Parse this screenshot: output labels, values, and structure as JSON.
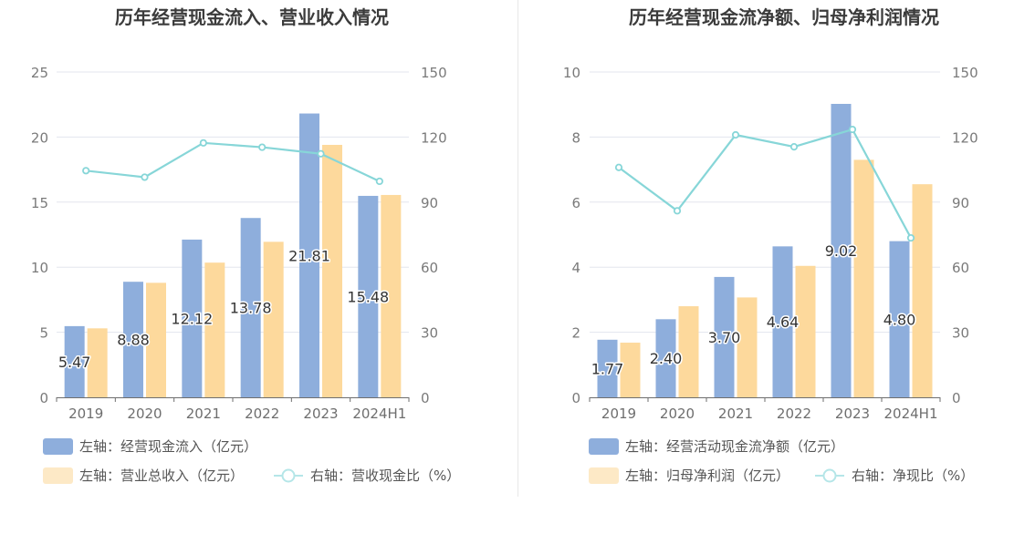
{
  "chart_data": [
    {
      "type": "bar",
      "title": "历年经营现金流入、营业收入情况",
      "categories": [
        "2019",
        "2020",
        "2021",
        "2022",
        "2023",
        "2024H1"
      ],
      "left_axis": {
        "ylim": [
          0,
          25
        ],
        "ticks": [
          "0",
          "5",
          "10",
          "15",
          "20",
          "25"
        ]
      },
      "right_axis": {
        "ylim": [
          0,
          150
        ],
        "ticks": [
          "0",
          "30",
          "60",
          "90",
          "120",
          "150"
        ]
      },
      "series": [
        {
          "name": "左轴：经营现金流入（亿元）",
          "type": "bar",
          "axis": "left",
          "color": "#8eaedc",
          "values": [
            5.47,
            8.88,
            12.12,
            13.78,
            21.81,
            15.48
          ],
          "labels": [
            "5.47",
            "8.88",
            "12.12",
            "13.78",
            "21.81",
            "15.48"
          ]
        },
        {
          "name": "左轴：营业总收入（亿元）",
          "type": "bar",
          "axis": "left",
          "color": "#fdd99c",
          "legend_color": "#fde9c6",
          "values": [
            5.3,
            8.8,
            10.35,
            11.95,
            19.4,
            15.55
          ]
        },
        {
          "name": "右轴：营收现金比（%）",
          "type": "line",
          "axis": "right",
          "color": "#87d6d8",
          "legend_color": "#b5e6e8",
          "values": [
            104.5,
            101.5,
            117.3,
            115.3,
            112.3,
            99.6
          ]
        }
      ],
      "grid": true,
      "legend": "bottom"
    },
    {
      "type": "bar",
      "title": "历年经营现金流净额、归母净利润情况",
      "categories": [
        "2019",
        "2020",
        "2021",
        "2022",
        "2023",
        "2024H1"
      ],
      "left_axis": {
        "ylim": [
          0,
          10
        ],
        "ticks": [
          "0",
          "2",
          "4",
          "6",
          "8",
          "10"
        ]
      },
      "right_axis": {
        "ylim": [
          0,
          150
        ],
        "ticks": [
          "0",
          "30",
          "60",
          "90",
          "120",
          "150"
        ]
      },
      "series": [
        {
          "name": "左轴：经营活动现金流净额（亿元）",
          "type": "bar",
          "axis": "left",
          "color": "#8eaedc",
          "values": [
            1.77,
            2.4,
            3.7,
            4.64,
            9.02,
            4.8
          ],
          "labels": [
            "1.77",
            "2.40",
            "3.70",
            "4.64",
            "9.02",
            "4.80"
          ]
        },
        {
          "name": "左轴：归母净利润（亿元）",
          "type": "bar",
          "axis": "left",
          "color": "#fdd99c",
          "legend_color": "#fde9c6",
          "values": [
            1.68,
            2.8,
            3.07,
            4.04,
            7.3,
            6.55
          ]
        },
        {
          "name": "右轴：净现比（%）",
          "type": "line",
          "axis": "right",
          "color": "#87d6d8",
          "legend_color": "#b5e6e8",
          "values": [
            106,
            86,
            121,
            115.5,
            123.5,
            73.5
          ]
        }
      ],
      "grid": true,
      "legend": "bottom"
    }
  ]
}
